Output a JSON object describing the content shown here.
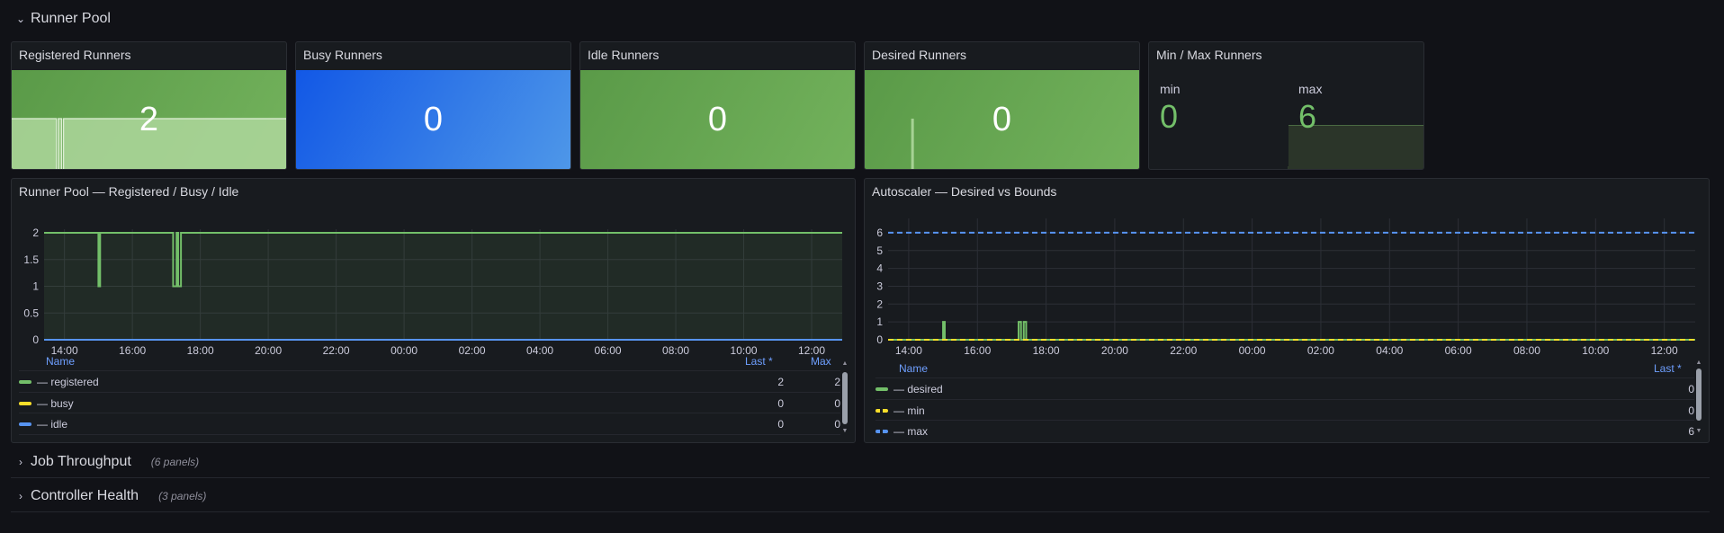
{
  "rows": [
    {
      "title": "Runner Pool",
      "count": "",
      "expanded": true
    },
    {
      "title": "Job Throughput",
      "count": "(6 panels)",
      "expanded": false
    },
    {
      "title": "Controller Health",
      "count": "(3 panels)",
      "expanded": false
    }
  ],
  "stats": [
    {
      "title": "Registered Runners",
      "value": "2",
      "color": "#73bf69"
    },
    {
      "title": "Busy Runners",
      "value": "0",
      "color": "#1f60c4"
    },
    {
      "title": "Idle Runners",
      "value": "0",
      "color": "#73bf69"
    },
    {
      "title": "Desired Runners",
      "value": "0",
      "color": "#73bf69"
    }
  ],
  "minmax": {
    "title": "Min / Max Runners",
    "min_label": "min",
    "min_value": "0",
    "max_label": "max",
    "max_value": "6"
  },
  "pool_chart": {
    "title": "Runner Pool — Registered / Busy / Idle",
    "legend": {
      "name_header": "Name",
      "last_header": "Last *",
      "max_header": "Max",
      "rows": [
        {
          "name": "— registered",
          "color": "#73bf69",
          "last": "2",
          "max": "2"
        },
        {
          "name": "— busy",
          "color": "#fade2a",
          "last": "0",
          "max": "0"
        },
        {
          "name": "— idle",
          "color": "#5794f2",
          "last": "0",
          "max": "0"
        }
      ]
    }
  },
  "autoscaler_chart": {
    "title": "Autoscaler — Desired vs Bounds",
    "legend": {
      "name_header": "Name",
      "last_header": "Last *",
      "rows": [
        {
          "name": "— desired",
          "color": "#73bf69",
          "last": "0",
          "dashed": false
        },
        {
          "name": "— min",
          "color": "#fade2a",
          "last": "0",
          "dashed": true
        },
        {
          "name": "— max",
          "color": "#5794f2",
          "last": "6",
          "dashed": true
        }
      ]
    }
  },
  "chart_data": [
    {
      "type": "line",
      "title": "Runner Pool — Registered / Busy / Idle",
      "x_ticks": [
        "14:00",
        "16:00",
        "18:00",
        "20:00",
        "22:00",
        "00:00",
        "02:00",
        "04:00",
        "06:00",
        "08:00",
        "10:00",
        "12:00"
      ],
      "x_range": [
        13.4,
        36.9
      ],
      "y_ticks": [
        "0",
        "0.5",
        "1",
        "1.5",
        "2"
      ],
      "ylim": [
        0,
        2
      ],
      "grid": true,
      "series": [
        {
          "name": "registered",
          "color": "#73bf69",
          "fill": true,
          "points": [
            [
              13.4,
              2
            ],
            [
              15.0,
              2
            ],
            [
              15.0,
              1
            ],
            [
              15.05,
              1
            ],
            [
              15.05,
              2
            ],
            [
              17.2,
              2
            ],
            [
              17.2,
              1
            ],
            [
              17.3,
              1
            ],
            [
              17.3,
              2
            ],
            [
              17.35,
              2
            ],
            [
              17.35,
              1
            ],
            [
              17.43,
              1
            ],
            [
              17.43,
              2
            ],
            [
              36.9,
              2
            ]
          ]
        },
        {
          "name": "busy",
          "color": "#fade2a",
          "fill": false,
          "points": [
            [
              13.4,
              0
            ],
            [
              36.9,
              0
            ]
          ]
        },
        {
          "name": "idle",
          "color": "#5794f2",
          "fill": false,
          "points": [
            [
              13.4,
              0
            ],
            [
              36.9,
              0
            ]
          ]
        }
      ]
    },
    {
      "type": "line",
      "title": "Autoscaler — Desired vs Bounds",
      "x_ticks": [
        "14:00",
        "16:00",
        "18:00",
        "20:00",
        "22:00",
        "00:00",
        "02:00",
        "04:00",
        "06:00",
        "08:00",
        "10:00",
        "12:00"
      ],
      "x_range": [
        13.4,
        36.9
      ],
      "y_ticks": [
        "0",
        "1",
        "2",
        "3",
        "4",
        "5",
        "6"
      ],
      "ylim": [
        0,
        6.6
      ],
      "grid": true,
      "series": [
        {
          "name": "desired",
          "color": "#73bf69",
          "dashed": false,
          "points": [
            [
              13.4,
              0
            ],
            [
              15.0,
              0
            ],
            [
              15.0,
              1
            ],
            [
              15.05,
              1
            ],
            [
              15.05,
              0
            ],
            [
              17.2,
              0
            ],
            [
              17.2,
              1
            ],
            [
              17.27,
              1
            ],
            [
              17.27,
              0
            ],
            [
              17.35,
              0
            ],
            [
              17.35,
              1
            ],
            [
              17.42,
              1
            ],
            [
              17.42,
              0
            ],
            [
              36.9,
              0
            ]
          ]
        },
        {
          "name": "min",
          "color": "#fade2a",
          "dashed": true,
          "points": [
            [
              13.4,
              0
            ],
            [
              36.9,
              0
            ]
          ]
        },
        {
          "name": "max",
          "color": "#5794f2",
          "dashed": true,
          "points": [
            [
              13.4,
              6
            ],
            [
              36.9,
              6
            ]
          ]
        }
      ]
    }
  ]
}
